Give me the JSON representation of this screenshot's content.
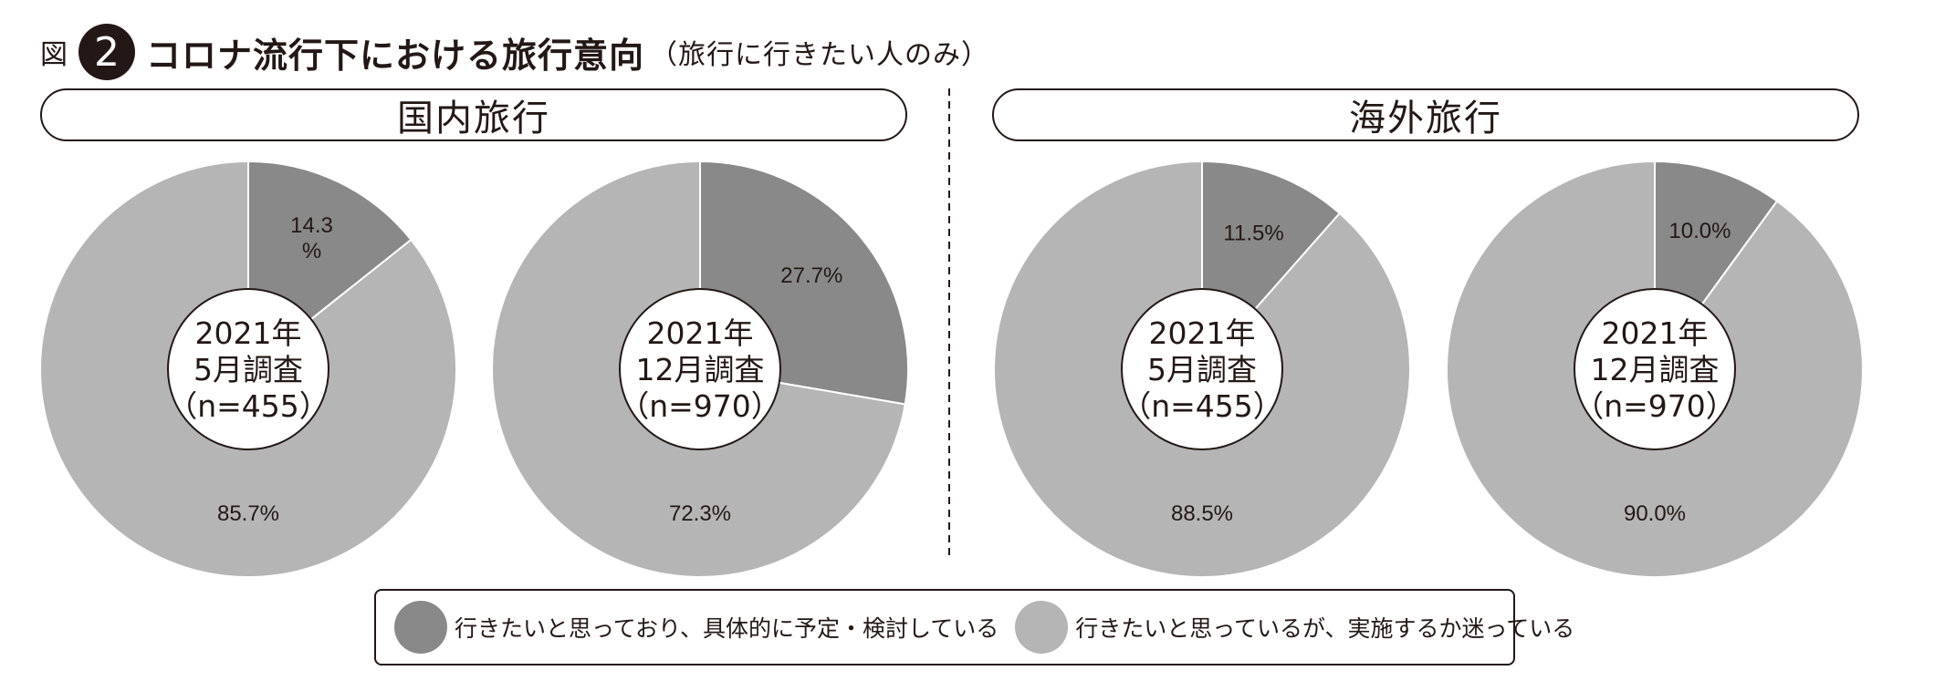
{
  "header": {
    "fig_label": "図",
    "fig_number": "2",
    "title": "コロナ流行下における旅行意向",
    "subtitle": "（旅行に行きたい人のみ）"
  },
  "sections": [
    {
      "label": "国内旅行"
    },
    {
      "label": "海外旅行"
    }
  ],
  "colors": {
    "planning": "#898989",
    "undecided": "#b5b5b5"
  },
  "chart_data": [
    {
      "type": "pie",
      "group": "国内旅行",
      "center_label": [
        "2021年",
        "5月調査",
        "（n=455）"
      ],
      "slices": [
        {
          "category": "行きたいと思っており、具体的に予定・検討している",
          "value": 14.3,
          "label": [
            "14.3",
            "%"
          ]
        },
        {
          "category": "行きたいと思っているが、実施するか迷っている",
          "value": 85.7,
          "label": [
            "85.7%"
          ]
        }
      ]
    },
    {
      "type": "pie",
      "group": "国内旅行",
      "center_label": [
        "2021年",
        "12月調査",
        "（n=970）"
      ],
      "slices": [
        {
          "category": "行きたいと思っており、具体的に予定・検討している",
          "value": 27.7,
          "label": [
            "27.7%"
          ]
        },
        {
          "category": "行きたいと思っているが、実施するか迷っている",
          "value": 72.3,
          "label": [
            "72.3%"
          ]
        }
      ]
    },
    {
      "type": "pie",
      "group": "海外旅行",
      "center_label": [
        "2021年",
        "5月調査",
        "（n=455）"
      ],
      "slices": [
        {
          "category": "行きたいと思っており、具体的に予定・検討している",
          "value": 11.5,
          "label": [
            "11.5%"
          ]
        },
        {
          "category": "行きたいと思っているが、実施するか迷っている",
          "value": 88.5,
          "label": [
            "88.5%"
          ]
        }
      ]
    },
    {
      "type": "pie",
      "group": "海外旅行",
      "center_label": [
        "2021年",
        "12月調査",
        "（n=970）"
      ],
      "slices": [
        {
          "category": "行きたいと思っており、具体的に予定・検討している",
          "value": 10.0,
          "label": [
            "10.0%"
          ]
        },
        {
          "category": "行きたいと思っているが、実施するか迷っている",
          "value": 90.0,
          "label": [
            "90.0%"
          ]
        }
      ]
    }
  ],
  "legend": [
    {
      "label": "行きたいと思っており、具体的に予定・検討している",
      "color": "#898989"
    },
    {
      "label": "行きたいと思っているが、実施するか迷っている",
      "color": "#b5b5b5"
    }
  ]
}
